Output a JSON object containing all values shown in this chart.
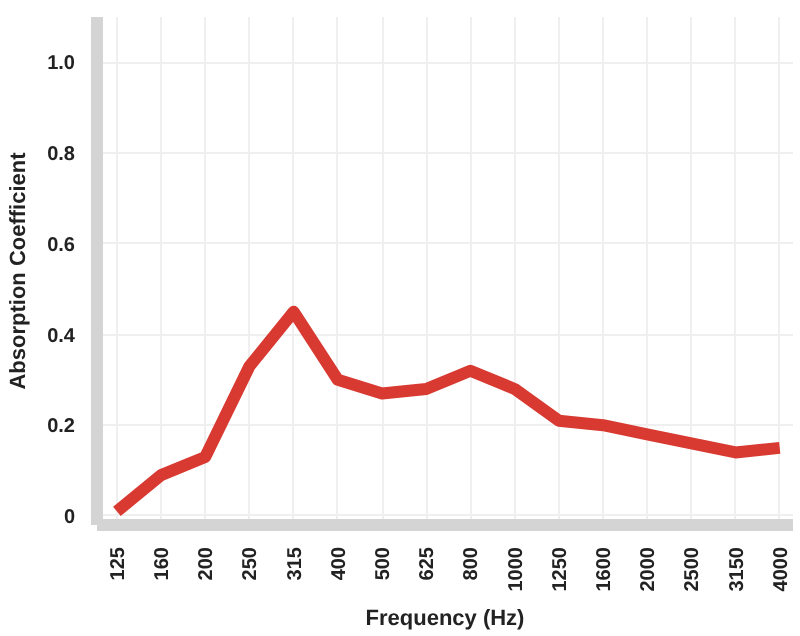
{
  "chart_data": {
    "type": "line",
    "xlabel": "Frequency (Hz)",
    "ylabel": "Absorption Coefficient",
    "categories": [
      "125",
      "160",
      "200",
      "250",
      "315",
      "400",
      "500",
      "625",
      "800",
      "1000",
      "1250",
      "1600",
      "2000",
      "2500",
      "3150",
      "4000"
    ],
    "series": [
      {
        "color": "#d83a32",
        "values": [
          0.01,
          0.09,
          0.13,
          0.33,
          0.45,
          0.3,
          0.27,
          0.28,
          0.32,
          0.28,
          0.21,
          0.2,
          0.18,
          0.16,
          0.14,
          0.15
        ]
      }
    ],
    "ylim": [
      -0.02,
      1.1
    ],
    "yticks": [
      0,
      0.2,
      0.4,
      0.6,
      0.8,
      {
        "value": 1.0,
        "label": "1.0"
      }
    ],
    "grid": true,
    "marker": "none",
    "line_style": "solid"
  }
}
